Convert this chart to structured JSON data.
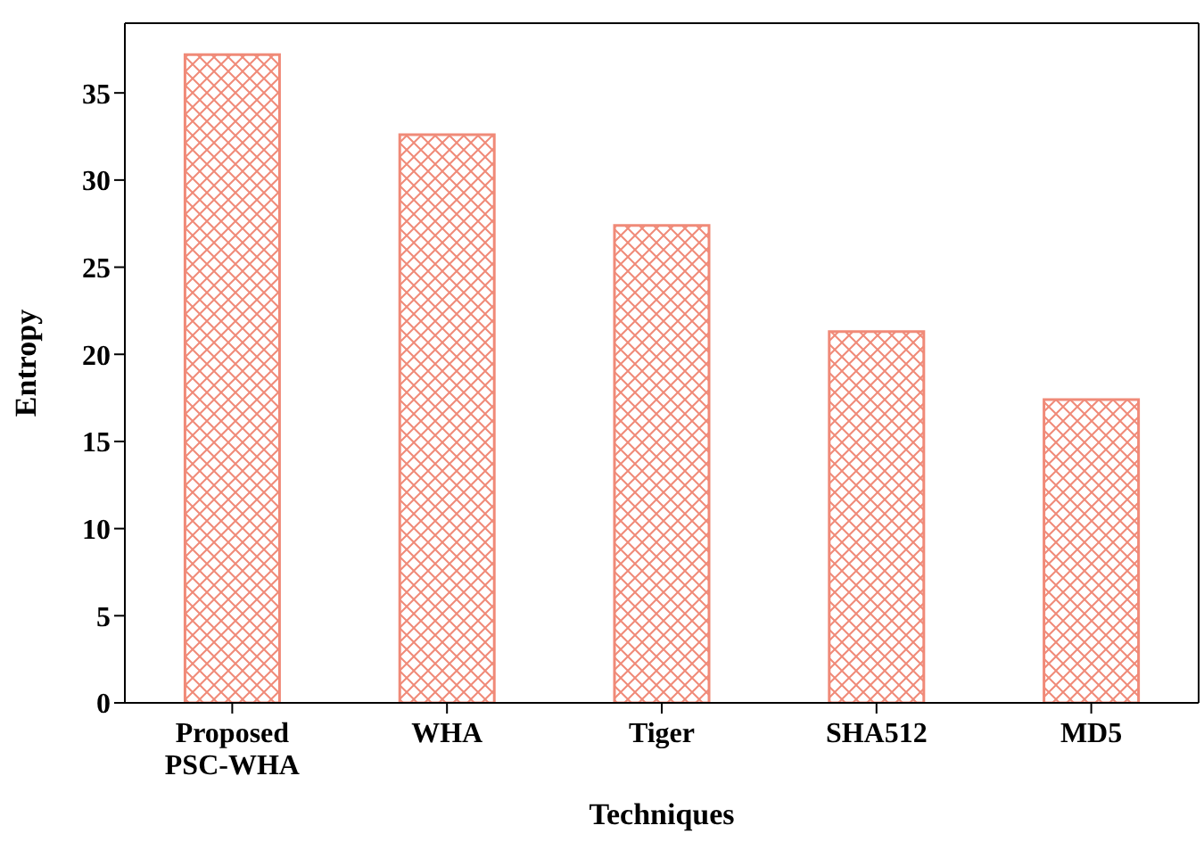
{
  "chart_data": {
    "type": "bar",
    "xlabel": "Techniques",
    "ylabel": "Entropy",
    "categories": [
      "Proposed\nPSC-WHA",
      "WHA",
      "Tiger",
      "SHA512",
      "MD5"
    ],
    "values": [
      37.2,
      32.6,
      27.4,
      21.3,
      17.4
    ],
    "color": "#f08a78",
    "ylim": [
      0,
      39
    ],
    "yticks": [
      0,
      5,
      10,
      15,
      20,
      25,
      30,
      35
    ],
    "grid": false
  }
}
